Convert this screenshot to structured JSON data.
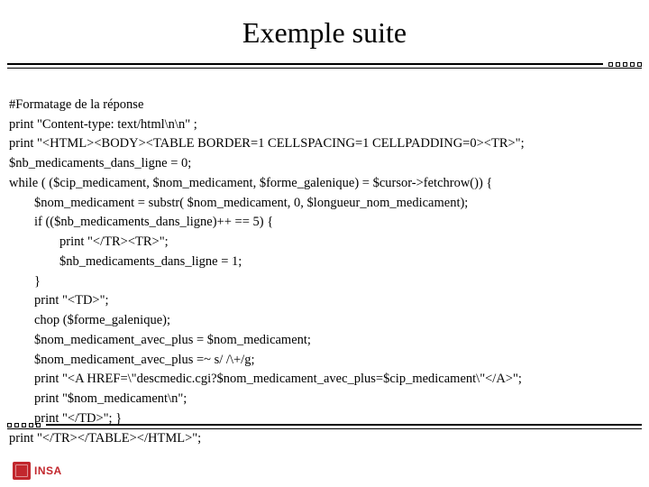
{
  "title": "Exemple suite",
  "colors": {
    "background": "#ffffff",
    "text": "#000000",
    "divider": "#000000",
    "logo": "#c2272d"
  },
  "typography": {
    "title_fontsize": 32,
    "body_fontsize": 14.5,
    "body_lineheight": 1.5,
    "font_family": "Times New Roman"
  },
  "code": {
    "l01": "#Formatage de la réponse",
    "l02": "print \"Content-type: text/html\\n\\n\" ;",
    "l03": "print \"<HTML><BODY><TABLE BORDER=1 CELLSPACING=1 CELLPADDING=0><TR>\";",
    "l04": "$nb_medicaments_dans_ligne = 0;",
    "l05": "while ( ($cip_medicament, $nom_medicament, $forme_galenique) = $cursor->fetchrow()) {",
    "l06": "$nom_medicament = substr( $nom_medicament, 0, $longueur_nom_medicament);",
    "l07": "if (($nb_medicaments_dans_ligne)++ == 5) {",
    "l08": "print \"</TR><TR>\";",
    "l09": "$nb_medicaments_dans_ligne = 1;",
    "l10": "}",
    "l11": "print \"<TD>\";",
    "l12": "chop ($forme_galenique);",
    "l13": "$nom_medicament_avec_plus = $nom_medicament;",
    "l14": "$nom_medicament_avec_plus =~ s/ /\\+/g;",
    "l15": "print \"<A HREF=\\\"descmedic.cgi?$nom_medicament_avec_plus=$cip_medicament\\\"</A>\";",
    "l16": "print \"$nom_medicament\\n\";",
    "l17": "print \"</TD>\"; }",
    "l18": "print \"</TR></TABLE></HTML>\";"
  },
  "logo": {
    "text": "INSA"
  }
}
